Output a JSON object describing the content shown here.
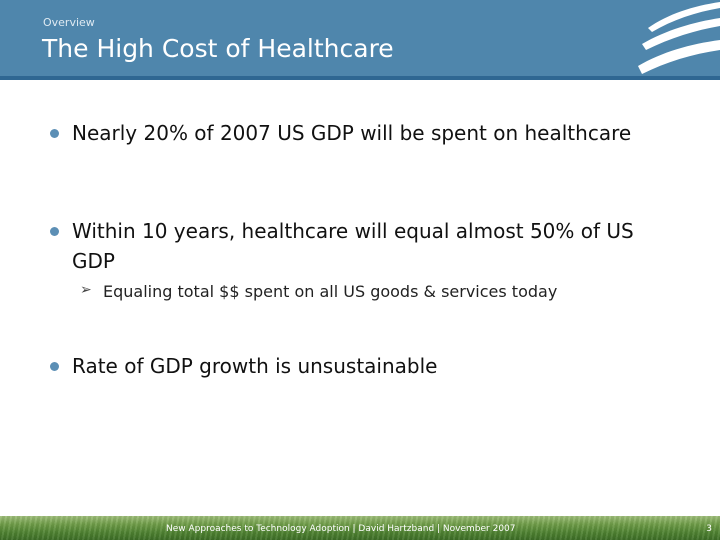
{
  "header": {
    "section": "Overview",
    "title": "The High Cost of Healthcare"
  },
  "bullets": [
    {
      "text": "Nearly 20% of  2007 US GDP will be spent on healthcare"
    },
    {
      "text": "Within 10 years, healthcare will equal almost 50% of US GDP",
      "sub": "Equaling total $$ spent on all US goods & services today"
    },
    {
      "text": "Rate of GDP growth is unsustainable"
    }
  ],
  "footer": {
    "text": "New Approaches to Technology Adoption | David Hartzband | November 2007",
    "page": "3"
  },
  "colors": {
    "header": "#4f86ac",
    "bullet": "#5c8fb5",
    "footer": "#4e8231"
  },
  "icons": {
    "logo": "swoosh-logo-icon",
    "sub_bullet": "arrow-bullet-icon"
  }
}
